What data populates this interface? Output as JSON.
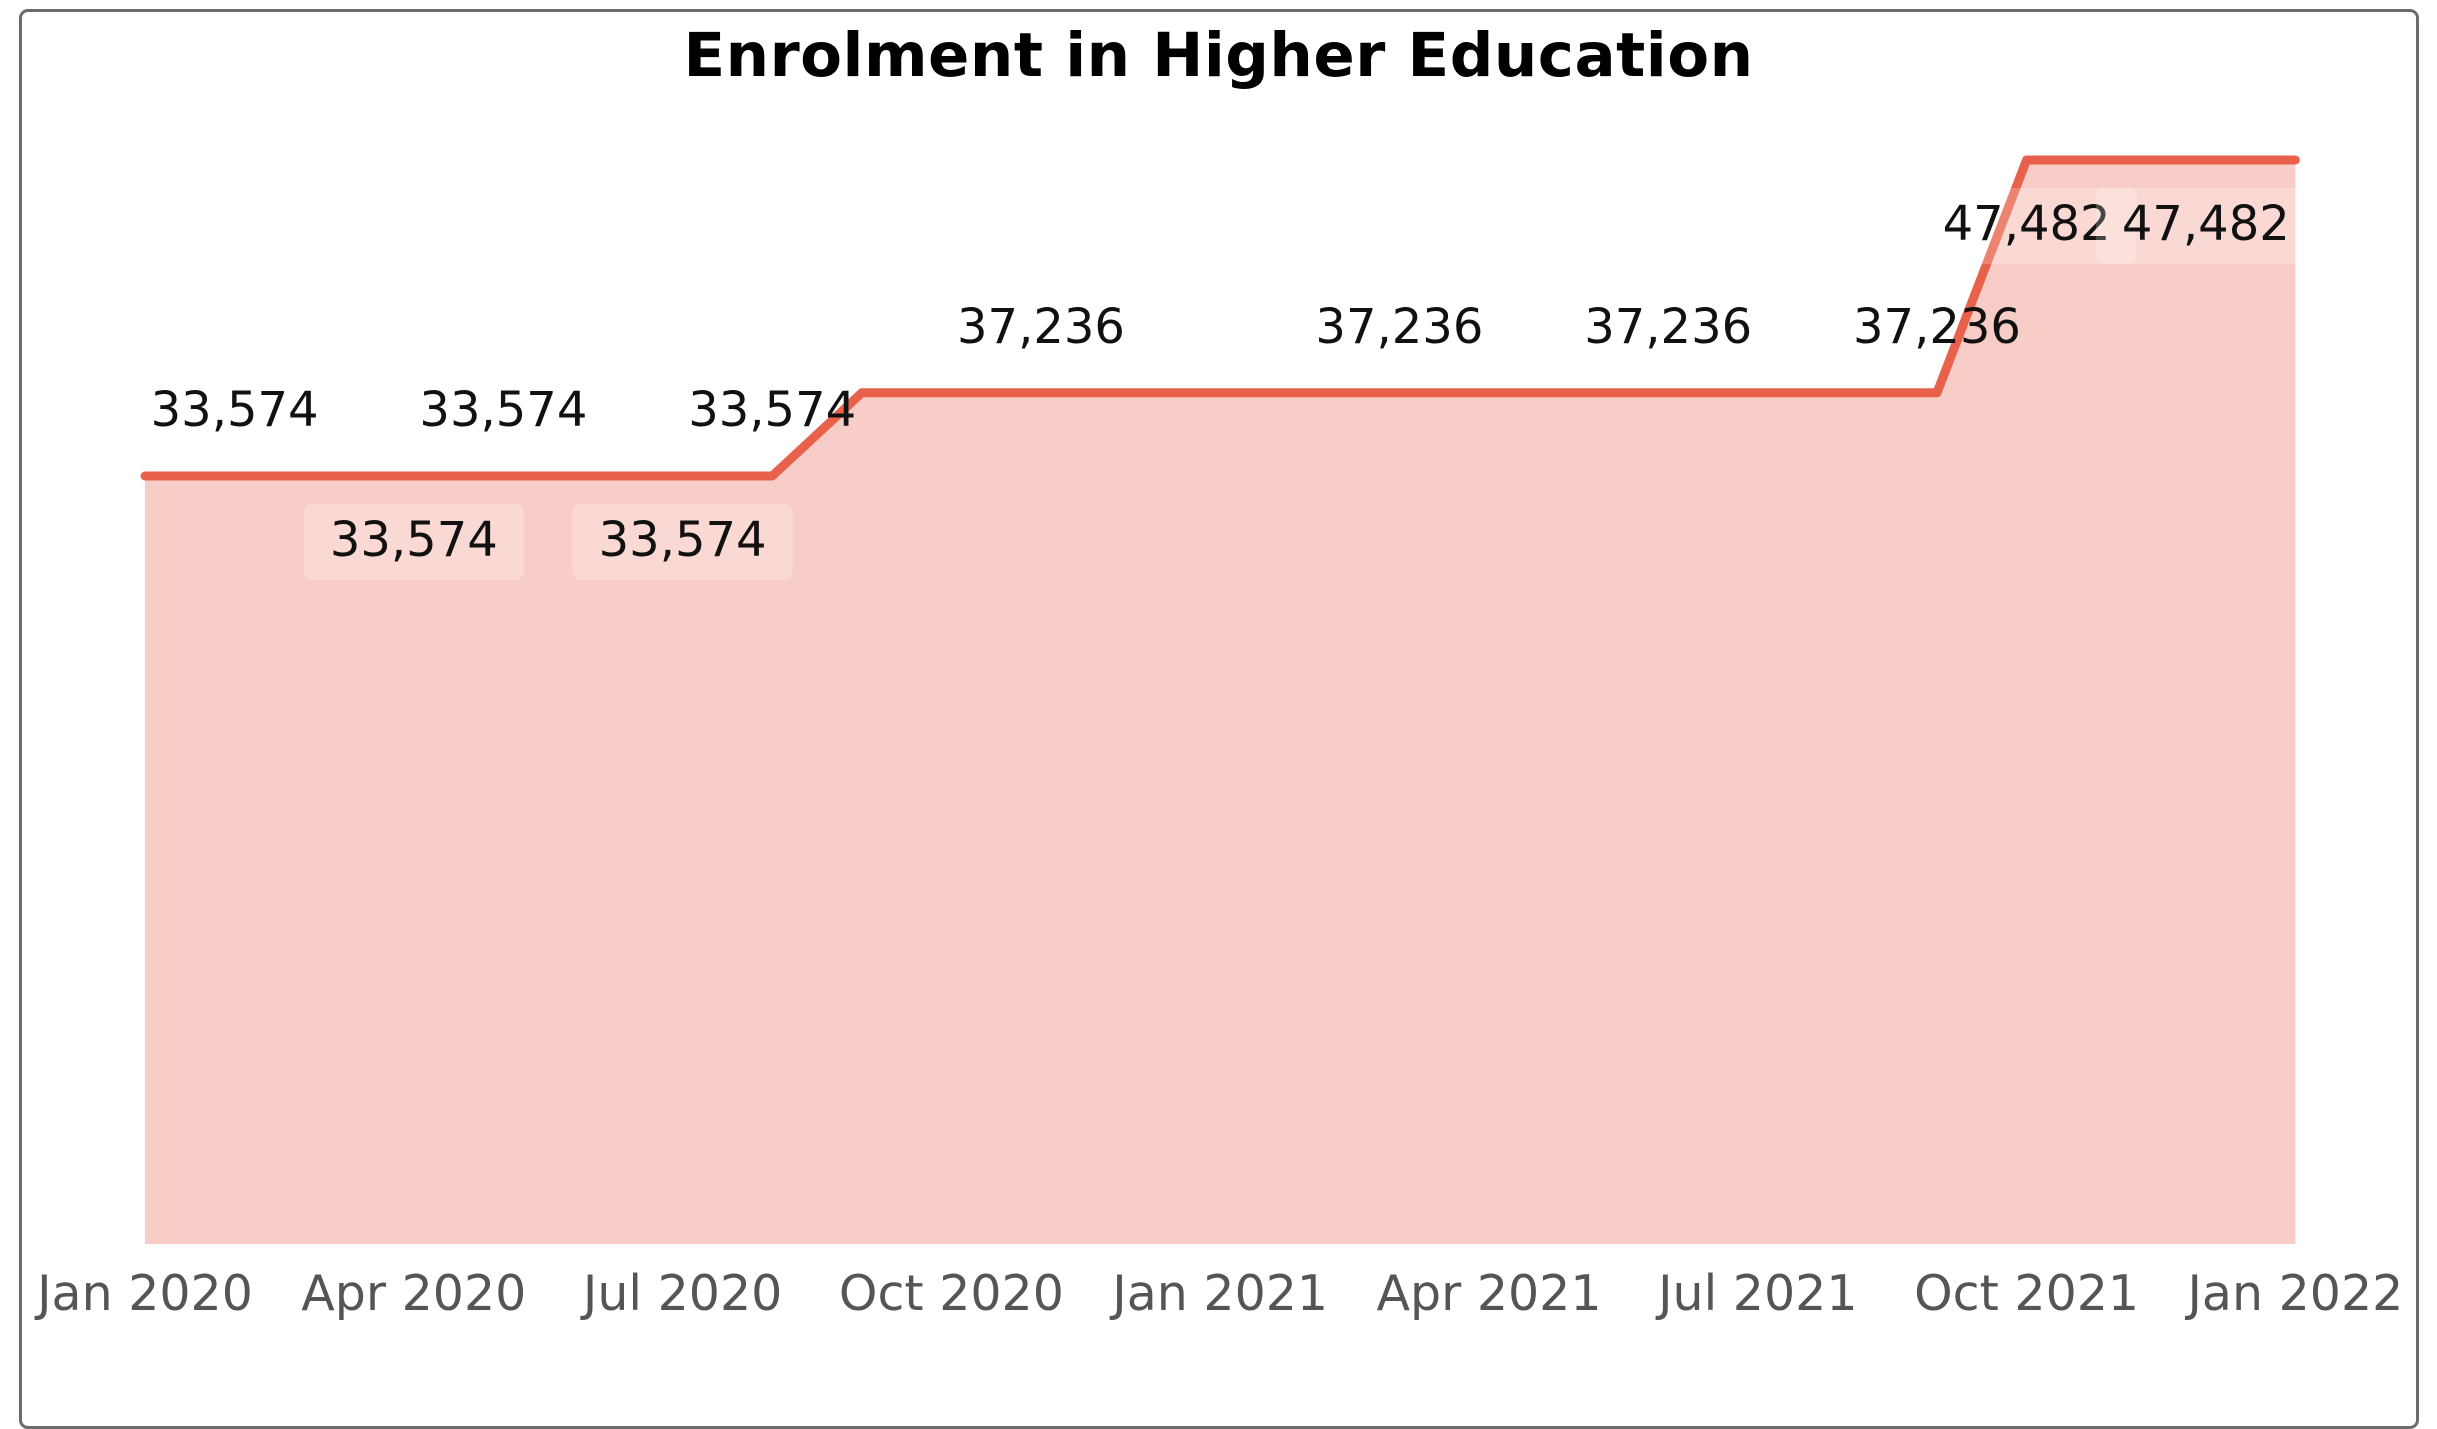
{
  "chart_data": {
    "type": "area",
    "title": "Enrolment in Higher Education",
    "xlabel": "",
    "ylabel": "",
    "x_ticks": [
      "Jan 2020",
      "Apr 2020",
      "Jul 2020",
      "Oct 2020",
      "Jan 2021",
      "Apr 2021",
      "Jul 2021",
      "Oct 2021",
      "Jan 2022"
    ],
    "x": [
      "Jan 2020",
      "Feb 2020",
      "Mar 2020",
      "Apr 2020",
      "May 2020",
      "Jun 2020",
      "Jul 2020",
      "Aug 2020",
      "Sep 2020",
      "Oct 2020",
      "Nov 2020",
      "Dec 2020",
      "Jan 2021",
      "Feb 2021",
      "Mar 2021",
      "Apr 2021",
      "May 2021",
      "Jun 2021",
      "Jul 2021",
      "Aug 2021",
      "Sep 2021",
      "Oct 2021",
      "Nov 2021",
      "Dec 2021",
      "Jan 2022"
    ],
    "series": [
      {
        "values": [
          33574,
          33574,
          33574,
          33574,
          33574,
          33574,
          33574,
          33574,
          37236,
          37236,
          37236,
          37236,
          37236,
          37236,
          37236,
          37236,
          37236,
          37236,
          37236,
          37236,
          37236,
          47482,
          47482,
          47482,
          47482
        ],
        "color": "#e8614a",
        "fill": "#f9cdc7"
      }
    ],
    "data_labels": [
      {
        "x": "Feb 2020",
        "text": "33,574",
        "place": "above"
      },
      {
        "x": "Apr 2020",
        "text": "33,574",
        "place": "below"
      },
      {
        "x": "May 2020",
        "text": "33,574",
        "place": "above"
      },
      {
        "x": "Jul 2020",
        "text": "33,574",
        "place": "below"
      },
      {
        "x": "Aug 2020",
        "text": "33,574",
        "place": "above"
      },
      {
        "x": "Nov 2020",
        "text": "37,236",
        "place": "above"
      },
      {
        "x": "Mar 2021",
        "text": "37,236",
        "place": "above"
      },
      {
        "x": "Jun 2021",
        "text": "37,236",
        "place": "above"
      },
      {
        "x": "Sep 2021",
        "text": "37,236",
        "place": "above"
      },
      {
        "x": "Oct 2021",
        "text": "47,482",
        "place": "below"
      },
      {
        "x": "Dec 2021",
        "text": "47,482",
        "place": "below"
      }
    ],
    "ylim": [
      0,
      50000
    ],
    "grid": false,
    "legend": "none"
  }
}
